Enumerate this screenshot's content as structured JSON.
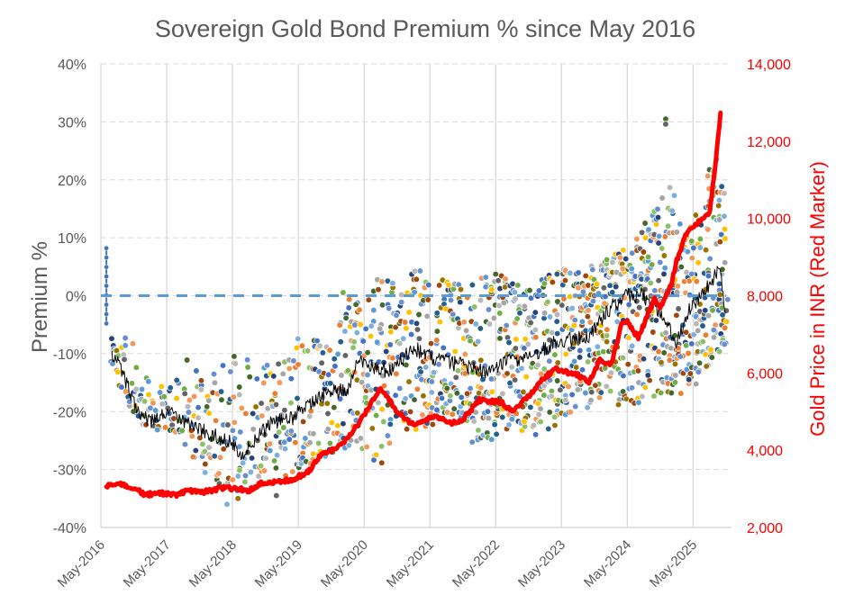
{
  "chart_data": {
    "type": "scatter",
    "title": "Sovereign Gold Bond Premium % since May 2016",
    "xlabel": "",
    "ylabel": "Premium %",
    "y2label": "Gold Price in INR (Red Marker)",
    "x_range": [
      "2016-05",
      "2025-12"
    ],
    "ylim": [
      -40,
      40
    ],
    "y2lim": [
      2000,
      14000
    ],
    "grid": true,
    "legend": "none",
    "x_ticks": [
      {
        "date": "2016-05",
        "label": "May-2016"
      },
      {
        "date": "2017-05",
        "label": "May-2017"
      },
      {
        "date": "2018-05",
        "label": "May-2018"
      },
      {
        "date": "2019-05",
        "label": "May-2019"
      },
      {
        "date": "2020-05",
        "label": "May-2020"
      },
      {
        "date": "2021-05",
        "label": "May-2021"
      },
      {
        "date": "2022-05",
        "label": "May-2022"
      },
      {
        "date": "2023-05",
        "label": "May-2023"
      },
      {
        "date": "2024-05",
        "label": "May-2024"
      },
      {
        "date": "2025-05",
        "label": "May-2025"
      }
    ],
    "y_ticks": [
      {
        "value": 40,
        "label": "40%"
      },
      {
        "value": 30,
        "label": "30%"
      },
      {
        "value": 20,
        "label": "20%"
      },
      {
        "value": 10,
        "label": "10%"
      },
      {
        "value": 0,
        "label": "0%"
      },
      {
        "value": -10,
        "label": "-10%"
      },
      {
        "value": -20,
        "label": "-20%"
      },
      {
        "value": -30,
        "label": "-30%"
      },
      {
        "value": -40,
        "label": "-40%"
      }
    ],
    "y2_ticks": [
      {
        "value": 14000,
        "label": "14,000"
      },
      {
        "value": 12000,
        "label": "12,000"
      },
      {
        "value": 10000,
        "label": "10,000"
      },
      {
        "value": 8000,
        "label": "8,000"
      },
      {
        "value": 6000,
        "label": "6,000"
      },
      {
        "value": 4000,
        "label": "4,000"
      },
      {
        "value": 2000,
        "label": "2,000"
      }
    ],
    "series": [
      {
        "name": "Gold Price (INR)",
        "kind": "line",
        "axis": "right",
        "color": "#FF0000",
        "points": [
          [
            "2016-06",
            3050
          ],
          [
            "2016-07",
            3120
          ],
          [
            "2016-09",
            3100
          ],
          [
            "2016-11",
            3030
          ],
          [
            "2017-01",
            2850
          ],
          [
            "2017-04",
            2880
          ],
          [
            "2017-07",
            2840
          ],
          [
            "2017-09",
            2960
          ],
          [
            "2017-12",
            2920
          ],
          [
            "2018-03",
            3030
          ],
          [
            "2018-06",
            3000
          ],
          [
            "2018-08",
            2950
          ],
          [
            "2018-10",
            3140
          ],
          [
            "2019-01",
            3190
          ],
          [
            "2019-04",
            3230
          ],
          [
            "2019-07",
            3470
          ],
          [
            "2019-09",
            3850
          ],
          [
            "2020-01",
            4150
          ],
          [
            "2020-04",
            4700
          ],
          [
            "2020-08",
            5600
          ],
          [
            "2020-11",
            5000
          ],
          [
            "2021-02",
            4650
          ],
          [
            "2021-06",
            4900
          ],
          [
            "2021-09",
            4700
          ],
          [
            "2021-11",
            4800
          ],
          [
            "2022-02",
            5300
          ],
          [
            "2022-06",
            5240
          ],
          [
            "2022-08",
            5000
          ],
          [
            "2022-11",
            5400
          ],
          [
            "2023-02",
            5900
          ],
          [
            "2023-04",
            6100
          ],
          [
            "2023-08",
            5940
          ],
          [
            "2023-10",
            5750
          ],
          [
            "2023-12",
            6340
          ],
          [
            "2024-02",
            6200
          ],
          [
            "2024-04",
            7270
          ],
          [
            "2024-05",
            7340
          ],
          [
            "2024-07",
            6900
          ],
          [
            "2024-09",
            7600
          ],
          [
            "2024-10",
            7900
          ],
          [
            "2024-11",
            7700
          ],
          [
            "2025-01",
            8300
          ],
          [
            "2025-02",
            8900
          ],
          [
            "2025-04",
            9700
          ],
          [
            "2025-06",
            9900
          ],
          [
            "2025-08",
            10150
          ],
          [
            "2025-09",
            11300
          ],
          [
            "2025-10",
            12700
          ]
        ]
      },
      {
        "name": "Average Premium %",
        "kind": "line",
        "axis": "left",
        "color": "#000000",
        "points": [
          [
            "2016-07",
            -10
          ],
          [
            "2016-08",
            -11
          ],
          [
            "2016-10",
            -16
          ],
          [
            "2016-12",
            -20
          ],
          [
            "2017-02",
            -22
          ],
          [
            "2017-05",
            -20
          ],
          [
            "2017-09",
            -22
          ],
          [
            "2017-12",
            -23.5
          ],
          [
            "2018-05",
            -25.5
          ],
          [
            "2018-07",
            -27.5
          ],
          [
            "2018-09",
            -25
          ],
          [
            "2018-12",
            -22
          ],
          [
            "2019-04",
            -21
          ],
          [
            "2019-06",
            -19
          ],
          [
            "2019-10",
            -17
          ],
          [
            "2020-02",
            -16
          ],
          [
            "2020-04",
            -11
          ],
          [
            "2020-07",
            -12.5
          ],
          [
            "2020-10",
            -13
          ],
          [
            "2021-02",
            -9
          ],
          [
            "2021-06",
            -11
          ],
          [
            "2021-11",
            -12
          ],
          [
            "2022-04",
            -13.5
          ],
          [
            "2022-07",
            -11
          ],
          [
            "2022-11",
            -11
          ],
          [
            "2023-04",
            -8
          ],
          [
            "2023-10",
            -7
          ],
          [
            "2024-02",
            -2
          ],
          [
            "2024-05",
            0
          ],
          [
            "2024-08",
            0
          ],
          [
            "2024-11",
            -3
          ],
          [
            "2025-02",
            -8
          ],
          [
            "2025-04",
            -3
          ],
          [
            "2025-08",
            2
          ],
          [
            "2025-10",
            5
          ],
          [
            "2025-11",
            -5
          ]
        ]
      },
      {
        "name": "SGB Tranche Premiums",
        "kind": "scatter",
        "axis": "left",
        "colors": [
          "#4472C4",
          "#ED7D31",
          "#A5A5A5",
          "#FFC000",
          "#5B9BD5",
          "#70AD47",
          "#264478",
          "#9E480E",
          "#636363",
          "#997300",
          "#255E91",
          "#43682B",
          "#698ED0",
          "#F1975A",
          "#B7B7B7",
          "#7CAFDD",
          "#8CC168"
        ],
        "envelope": [
          {
            "date": "2016-07",
            "high": -6,
            "low": -13
          },
          {
            "date": "2016-10",
            "high": -7,
            "low": -20
          },
          {
            "date": "2016-12",
            "high": -12,
            "low": -23
          },
          {
            "date": "2017-03",
            "high": -15,
            "low": -23
          },
          {
            "date": "2017-06",
            "high": -14,
            "low": -24
          },
          {
            "date": "2017-09",
            "high": -11,
            "low": -27
          },
          {
            "date": "2017-12",
            "high": -14,
            "low": -31
          },
          {
            "date": "2018-03",
            "high": -12,
            "low": -33
          },
          {
            "date": "2018-06",
            "high": -9,
            "low": -34
          },
          {
            "date": "2018-09",
            "high": -12,
            "low": -33
          },
          {
            "date": "2018-12",
            "high": -12,
            "low": -32
          },
          {
            "date": "2019-03",
            "high": -10,
            "low": -32
          },
          {
            "date": "2019-06",
            "high": -6,
            "low": -31
          },
          {
            "date": "2019-09",
            "high": -8,
            "low": -30
          },
          {
            "date": "2019-12",
            "high": -10,
            "low": -28
          },
          {
            "date": "2020-01",
            "high": 1,
            "low": -27
          },
          {
            "date": "2020-05",
            "high": -2,
            "low": -28
          },
          {
            "date": "2020-08",
            "high": 4,
            "low": -30
          },
          {
            "date": "2020-11",
            "high": 2,
            "low": -22
          },
          {
            "date": "2021-02",
            "high": 5,
            "low": -24
          },
          {
            "date": "2021-06",
            "high": 3,
            "low": -22
          },
          {
            "date": "2021-10",
            "high": 2,
            "low": -20
          },
          {
            "date": "2022-01",
            "high": 3,
            "low": -26
          },
          {
            "date": "2022-05",
            "high": 5,
            "low": -25
          },
          {
            "date": "2022-09",
            "high": 3,
            "low": -24
          },
          {
            "date": "2023-01",
            "high": 3,
            "low": -24
          },
          {
            "date": "2023-05",
            "high": 5,
            "low": -22
          },
          {
            "date": "2023-09",
            "high": 4,
            "low": -20
          },
          {
            "date": "2024-01",
            "high": 7,
            "low": -17
          },
          {
            "date": "2024-05",
            "high": 8,
            "low": -20
          },
          {
            "date": "2024-08",
            "high": 12,
            "low": -18
          },
          {
            "date": "2025-01",
            "high": 20,
            "low": -17
          },
          {
            "date": "2025-03",
            "high": 10,
            "low": -17
          },
          {
            "date": "2025-06",
            "high": 17,
            "low": -15
          },
          {
            "date": "2025-09",
            "high": 25,
            "low": -10
          },
          {
            "date": "2025-11",
            "high": 20,
            "low": -9
          }
        ]
      },
      {
        "name": "Zero Premium",
        "kind": "reference",
        "axis": "left",
        "value": 0,
        "color": "#5B9BD5",
        "x_span": [
          "2016-05",
          "2025-11"
        ]
      }
    ],
    "first_tranche": {
      "date": "2016-06",
      "high": 8.2,
      "low": -4.8,
      "color": "#4472C4"
    },
    "outliers": [
      {
        "date": "2024-12",
        "value": 30.5,
        "color": "#43682B"
      },
      {
        "date": "2024-12",
        "value": 29.6,
        "color": "#636363"
      },
      {
        "date": "2018-06",
        "value": -35,
        "color": "#997300"
      },
      {
        "date": "2018-04",
        "value": -36,
        "color": "#7CAFDD"
      },
      {
        "date": "2019-01",
        "value": -34.5,
        "color": "#636363"
      }
    ]
  }
}
